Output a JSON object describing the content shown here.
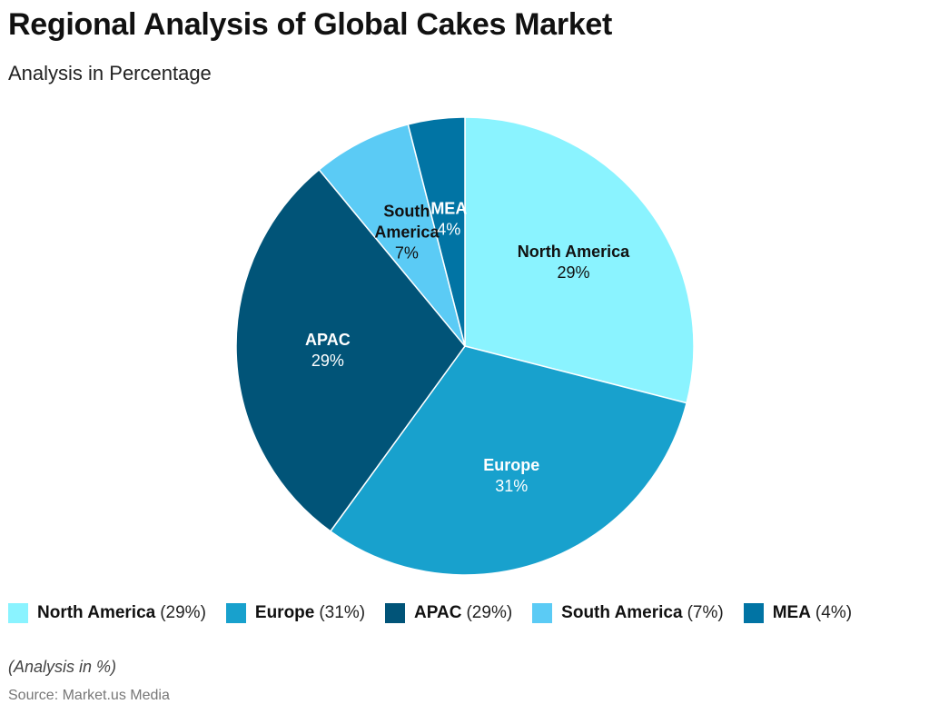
{
  "header": {
    "title": "Regional Analysis of Global Cakes Market",
    "subtitle": "Analysis in Percentage"
  },
  "chart_data": {
    "type": "pie",
    "title": "Regional Analysis of Global Cakes Market",
    "subtitle": "Analysis in Percentage",
    "categories": [
      "North America",
      "Europe",
      "APAC",
      "South America",
      "MEA"
    ],
    "values": [
      29,
      31,
      29,
      7,
      4
    ],
    "unit": "%",
    "colors": [
      "#8AF3FF",
      "#18A1CD",
      "#015478",
      "#5BCBF5",
      "#0174A4"
    ],
    "label_colors": [
      "#111111",
      "#ffffff",
      "#ffffff",
      "#111111",
      "#ffffff"
    ],
    "slice_labels": [
      {
        "lines": [
          "North America"
        ],
        "value": "29%"
      },
      {
        "lines": [
          "Europe"
        ],
        "value": "31%"
      },
      {
        "lines": [
          "APAC"
        ],
        "value": "29%"
      },
      {
        "lines": [
          "South",
          "America"
        ],
        "value": "7%"
      },
      {
        "lines": [
          "MEA"
        ],
        "value": "4%"
      }
    ],
    "legend_position": "bottom"
  },
  "legend": {
    "items": [
      {
        "name": "North America",
        "pct": "(29%)",
        "color": "#8AF3FF"
      },
      {
        "name": "Europe",
        "pct": "(31%)",
        "color": "#18A1CD"
      },
      {
        "name": "APAC",
        "pct": "(29%)",
        "color": "#015478"
      },
      {
        "name": "South America",
        "pct": "(7%)",
        "color": "#5BCBF5"
      },
      {
        "name": "MEA",
        "pct": "(4%)",
        "color": "#0174A4"
      }
    ]
  },
  "footer": {
    "note": "(Analysis in %)",
    "source": "Source: Market.us Media"
  }
}
